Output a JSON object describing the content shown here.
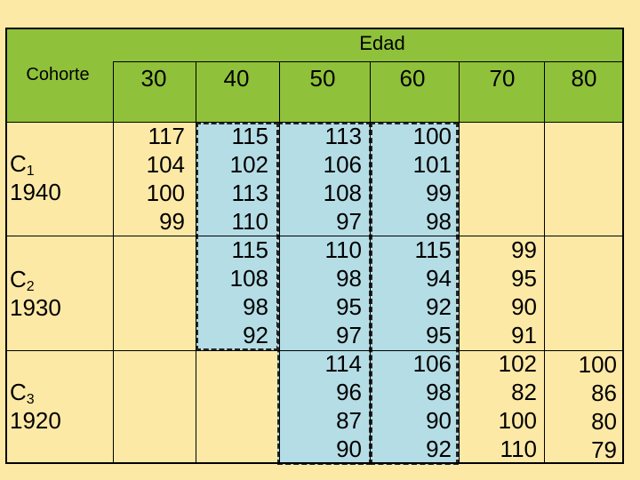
{
  "header": {
    "edad": "Edad",
    "cohorte": "Cohorte",
    "ages": [
      "30",
      "40",
      "50",
      "60",
      "70",
      "80"
    ]
  },
  "cohorts": [
    {
      "id": "C",
      "sub": "1",
      "year": "1940"
    },
    {
      "id": "C",
      "sub": "2",
      "year": "1930"
    },
    {
      "id": "C",
      "sub": "3",
      "year": "1920"
    }
  ],
  "columns": {
    "age30": [
      "117",
      "104",
      "100",
      "99"
    ],
    "age40": [
      "115",
      "102",
      "113",
      "110",
      "115",
      "108",
      "98",
      "92"
    ],
    "age50": [
      "113",
      "106",
      "108",
      "97",
      "110",
      "98",
      "95",
      "97",
      "114",
      "96",
      "87",
      "90"
    ],
    "age60": [
      "100",
      "101",
      "99",
      "98",
      "115",
      "94",
      "92",
      "95",
      "106",
      "98",
      "90",
      "92"
    ],
    "age70": [
      "99",
      "95",
      "90",
      "91",
      "102",
      "82",
      "100",
      "110"
    ],
    "age80": [
      "100",
      "86",
      "80",
      "79"
    ]
  },
  "colors": {
    "background": "#fde9a6",
    "header": "#8fc13a",
    "highlight": "#b5dde5"
  }
}
